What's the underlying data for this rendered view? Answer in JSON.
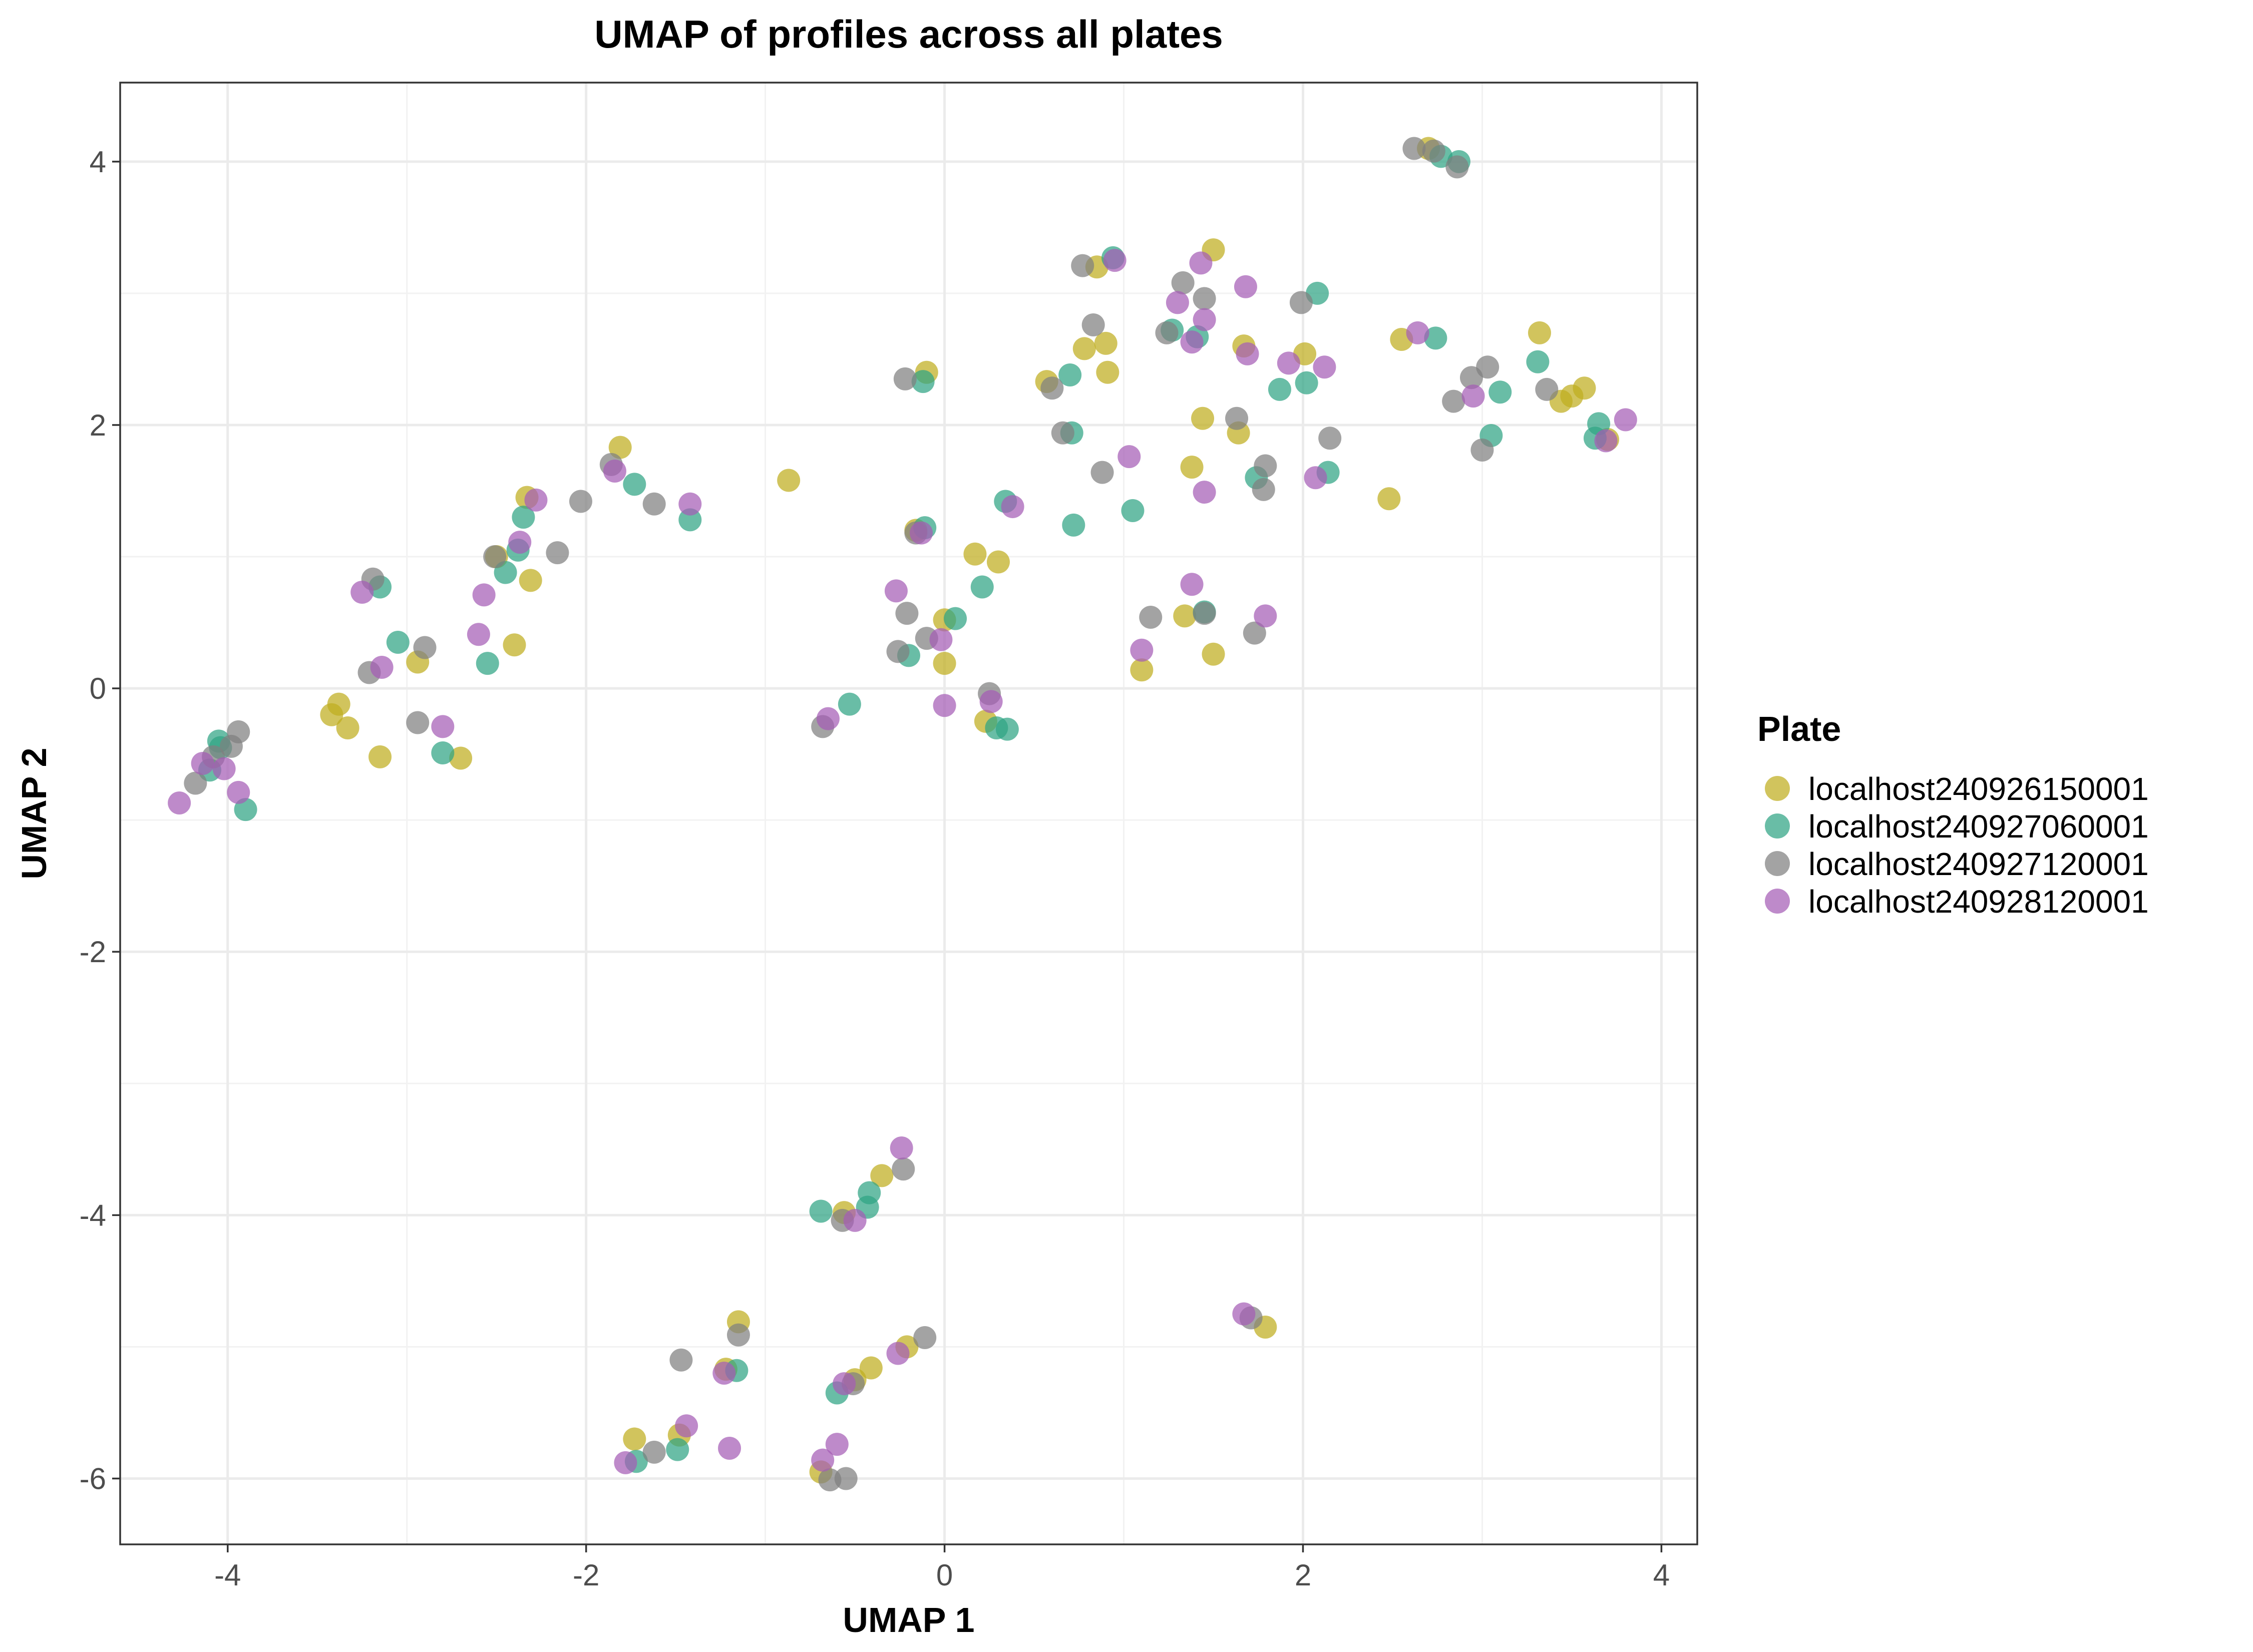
{
  "chart_data": {
    "type": "scatter",
    "title": "UMAP of profiles across all plates",
    "xlabel": "UMAP 1",
    "ylabel": "UMAP 2",
    "xlim": [
      -4.6,
      4.2
    ],
    "ylim": [
      -6.5,
      4.6
    ],
    "xticks": [
      -4,
      -2,
      0,
      2,
      4
    ],
    "yticks": [
      -6,
      -4,
      -2,
      0,
      2,
      4
    ],
    "xtick_labels": [
      "-4",
      "-2",
      "0",
      "2",
      "4"
    ],
    "ytick_labels": [
      "-6",
      "-4",
      "-2",
      "0",
      "2",
      "4"
    ],
    "grid": true,
    "legend": {
      "title": "Plate",
      "placement": "right"
    },
    "series": [
      {
        "name": "localhost240926150001",
        "color": "#BFAD1F",
        "points": [
          [
            -3.42,
            -0.2
          ],
          [
            -3.38,
            -0.12
          ],
          [
            -3.33,
            -0.3
          ],
          [
            -3.15,
            -0.52
          ],
          [
            -2.94,
            0.2
          ],
          [
            -2.7,
            -0.53
          ],
          [
            -2.5,
            1.0
          ],
          [
            -2.4,
            0.33
          ],
          [
            -2.33,
            1.45
          ],
          [
            -2.31,
            0.82
          ],
          [
            -1.81,
            1.83
          ],
          [
            -0.87,
            1.58
          ],
          [
            -0.16,
            1.2
          ],
          [
            -0.1,
            2.4
          ],
          [
            0.0,
            0.52
          ],
          [
            0.0,
            0.19
          ],
          [
            0.17,
            1.02
          ],
          [
            0.23,
            -0.25
          ],
          [
            0.3,
            0.96
          ],
          [
            0.57,
            2.33
          ],
          [
            0.78,
            2.58
          ],
          [
            0.85,
            3.2
          ],
          [
            0.9,
            2.62
          ],
          [
            0.91,
            2.4
          ],
          [
            1.1,
            0.14
          ],
          [
            1.34,
            0.55
          ],
          [
            1.38,
            1.68
          ],
          [
            1.44,
            2.05
          ],
          [
            1.5,
            0.26
          ],
          [
            1.5,
            3.33
          ],
          [
            1.64,
            1.94
          ],
          [
            1.67,
            2.6
          ],
          [
            2.01,
            2.54
          ],
          [
            2.48,
            1.44
          ],
          [
            2.55,
            2.65
          ],
          [
            2.7,
            4.1
          ],
          [
            3.32,
            2.7
          ],
          [
            3.44,
            2.18
          ],
          [
            3.5,
            2.22
          ],
          [
            3.57,
            2.28
          ],
          [
            3.7,
            1.89
          ],
          [
            -1.73,
            -5.7
          ],
          [
            -1.48,
            -5.67
          ],
          [
            -1.22,
            -5.17
          ],
          [
            -1.15,
            -4.81
          ],
          [
            -0.69,
            -5.95
          ],
          [
            -0.56,
            -3.98
          ],
          [
            -0.5,
            -5.25
          ],
          [
            -0.41,
            -5.16
          ],
          [
            -0.35,
            -3.7
          ],
          [
            -0.21,
            -5.0
          ],
          [
            1.79,
            -4.85
          ]
        ]
      },
      {
        "name": "localhost240927060001",
        "color": "#2FA383",
        "points": [
          [
            -4.1,
            -0.62
          ],
          [
            -4.05,
            -0.4
          ],
          [
            -4.04,
            -0.45
          ],
          [
            -3.9,
            -0.92
          ],
          [
            -3.15,
            0.77
          ],
          [
            -3.05,
            0.35
          ],
          [
            -2.8,
            -0.49
          ],
          [
            -2.55,
            0.19
          ],
          [
            -2.45,
            0.88
          ],
          [
            -2.38,
            1.05
          ],
          [
            -2.35,
            1.3
          ],
          [
            -1.73,
            1.55
          ],
          [
            -1.42,
            1.28
          ],
          [
            -0.53,
            -0.12
          ],
          [
            -0.2,
            0.25
          ],
          [
            -0.12,
            2.33
          ],
          [
            -0.11,
            1.22
          ],
          [
            0.06,
            0.53
          ],
          [
            0.21,
            0.77
          ],
          [
            0.29,
            -0.3
          ],
          [
            0.34,
            1.42
          ],
          [
            0.35,
            -0.31
          ],
          [
            0.7,
            2.38
          ],
          [
            0.71,
            1.94
          ],
          [
            0.72,
            1.24
          ],
          [
            0.94,
            3.27
          ],
          [
            1.05,
            1.35
          ],
          [
            1.27,
            2.72
          ],
          [
            1.41,
            2.67
          ],
          [
            1.45,
            0.58
          ],
          [
            1.74,
            1.6
          ],
          [
            1.87,
            2.27
          ],
          [
            2.02,
            2.32
          ],
          [
            2.08,
            3.0
          ],
          [
            2.14,
            1.64
          ],
          [
            2.77,
            4.04
          ],
          [
            2.87,
            4.0
          ],
          [
            2.74,
            2.66
          ],
          [
            3.05,
            1.92
          ],
          [
            3.1,
            2.25
          ],
          [
            3.31,
            2.48
          ],
          [
            3.63,
            1.9
          ],
          [
            3.65,
            2.01
          ],
          [
            -1.72,
            -5.87
          ],
          [
            -1.49,
            -5.78
          ],
          [
            -1.16,
            -5.18
          ],
          [
            -0.69,
            -3.97
          ],
          [
            -0.6,
            -5.35
          ],
          [
            -0.43,
            -3.94
          ],
          [
            -0.42,
            -3.83
          ]
        ]
      },
      {
        "name": "localhost240927120001",
        "color": "#7F7F7F",
        "points": [
          [
            -4.18,
            -0.72
          ],
          [
            -4.08,
            -0.52
          ],
          [
            -3.98,
            -0.44
          ],
          [
            -3.94,
            -0.33
          ],
          [
            -3.21,
            0.12
          ],
          [
            -3.19,
            0.83
          ],
          [
            -2.94,
            -0.26
          ],
          [
            -2.9,
            0.31
          ],
          [
            -2.51,
            1.0
          ],
          [
            -2.16,
            1.03
          ],
          [
            -2.03,
            1.42
          ],
          [
            -1.86,
            1.7
          ],
          [
            -1.62,
            1.4
          ],
          [
            -0.68,
            -0.29
          ],
          [
            -0.26,
            0.28
          ],
          [
            -0.22,
            2.35
          ],
          [
            -0.21,
            0.57
          ],
          [
            -0.16,
            1.18
          ],
          [
            -0.1,
            0.38
          ],
          [
            0.25,
            -0.04
          ],
          [
            0.6,
            2.28
          ],
          [
            0.66,
            1.94
          ],
          [
            0.77,
            3.21
          ],
          [
            0.83,
            2.76
          ],
          [
            0.88,
            1.64
          ],
          [
            1.15,
            0.54
          ],
          [
            1.24,
            2.7
          ],
          [
            1.33,
            3.08
          ],
          [
            1.45,
            2.96
          ],
          [
            1.45,
            0.57
          ],
          [
            1.63,
            2.05
          ],
          [
            1.73,
            0.42
          ],
          [
            1.78,
            1.51
          ],
          [
            1.79,
            1.69
          ],
          [
            1.99,
            2.93
          ],
          [
            2.15,
            1.9
          ],
          [
            2.62,
            4.1
          ],
          [
            2.73,
            4.08
          ],
          [
            2.86,
            3.96
          ],
          [
            2.84,
            2.18
          ],
          [
            2.94,
            2.36
          ],
          [
            3.0,
            1.81
          ],
          [
            3.03,
            2.44
          ],
          [
            3.36,
            2.27
          ],
          [
            -1.62,
            -5.8
          ],
          [
            -1.47,
            -5.1
          ],
          [
            -1.15,
            -4.91
          ],
          [
            -0.64,
            -6.01
          ],
          [
            -0.57,
            -4.04
          ],
          [
            -0.55,
            -6.0
          ],
          [
            -0.51,
            -5.28
          ],
          [
            -0.23,
            -3.65
          ],
          [
            -0.11,
            -4.93
          ],
          [
            1.71,
            -4.78
          ]
        ]
      },
      {
        "name": "localhost240928120001",
        "color": "#A55DB6",
        "points": [
          [
            -4.27,
            -0.87
          ],
          [
            -4.14,
            -0.57
          ],
          [
            -4.02,
            -0.61
          ],
          [
            -3.94,
            -0.79
          ],
          [
            -3.25,
            0.73
          ],
          [
            -3.14,
            0.16
          ],
          [
            -2.8,
            -0.29
          ],
          [
            -2.6,
            0.41
          ],
          [
            -2.57,
            0.71
          ],
          [
            -2.37,
            1.11
          ],
          [
            -2.28,
            1.43
          ],
          [
            -1.84,
            1.65
          ],
          [
            -1.42,
            1.4
          ],
          [
            -0.65,
            -0.23
          ],
          [
            -0.27,
            0.74
          ],
          [
            -0.13,
            1.18
          ],
          [
            -0.02,
            0.37
          ],
          [
            0.0,
            -0.13
          ],
          [
            0.26,
            -0.1
          ],
          [
            0.38,
            1.38
          ],
          [
            0.95,
            3.25
          ],
          [
            1.03,
            1.76
          ],
          [
            1.1,
            0.29
          ],
          [
            1.3,
            2.93
          ],
          [
            1.38,
            2.63
          ],
          [
            1.38,
            0.79
          ],
          [
            1.43,
            3.23
          ],
          [
            1.45,
            2.8
          ],
          [
            1.45,
            1.49
          ],
          [
            1.68,
            3.05
          ],
          [
            1.69,
            2.54
          ],
          [
            1.79,
            0.55
          ],
          [
            1.92,
            2.47
          ],
          [
            2.07,
            1.6
          ],
          [
            2.12,
            2.44
          ],
          [
            2.64,
            2.7
          ],
          [
            2.95,
            2.22
          ],
          [
            3.69,
            1.88
          ],
          [
            3.8,
            2.04
          ],
          [
            -1.78,
            -5.88
          ],
          [
            -1.44,
            -5.6
          ],
          [
            -1.23,
            -5.2
          ],
          [
            -1.2,
            -5.77
          ],
          [
            -0.68,
            -5.86
          ],
          [
            -0.6,
            -5.74
          ],
          [
            -0.56,
            -5.28
          ],
          [
            -0.5,
            -4.04
          ],
          [
            -0.26,
            -5.05
          ],
          [
            -0.24,
            -3.49
          ],
          [
            1.67,
            -4.75
          ]
        ]
      }
    ]
  }
}
